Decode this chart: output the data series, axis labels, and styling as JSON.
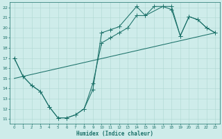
{
  "background_color": "#ceecea",
  "line_color": "#1a7068",
  "grid_color": "#aed8d2",
  "xlabel": "Humidex (Indice chaleur)",
  "xlim": [
    -0.5,
    23.5
  ],
  "ylim": [
    10.5,
    22.5
  ],
  "xticks": [
    0,
    1,
    2,
    3,
    4,
    5,
    6,
    7,
    8,
    9,
    10,
    11,
    12,
    13,
    14,
    15,
    16,
    17,
    18,
    19,
    20,
    21,
    22,
    23
  ],
  "yticks": [
    11,
    12,
    13,
    14,
    15,
    16,
    17,
    18,
    19,
    20,
    21,
    22
  ],
  "line1_x": [
    0,
    1,
    2,
    3,
    4,
    5,
    6,
    7,
    8,
    9,
    10,
    11,
    12,
    14,
    15,
    17,
    18,
    19,
    20,
    21,
    22,
    23
  ],
  "line1_y": [
    17.0,
    15.2,
    14.3,
    13.7,
    12.2,
    11.1,
    11.1,
    11.4,
    12.0,
    13.9,
    19.5,
    19.8,
    20.1,
    22.1,
    21.2,
    22.1,
    21.8,
    19.2,
    21.1,
    20.8,
    20.0,
    19.5
  ],
  "line2_x": [
    0,
    1,
    2,
    3,
    4,
    5,
    6,
    7,
    8,
    9,
    10,
    11,
    12,
    13,
    14,
    15,
    16,
    17,
    18,
    19,
    20,
    21,
    22,
    23
  ],
  "line2_y": [
    17.0,
    15.2,
    14.3,
    13.7,
    12.2,
    11.1,
    11.1,
    11.4,
    12.0,
    14.5,
    18.5,
    19.0,
    19.5,
    20.0,
    21.2,
    21.2,
    22.1,
    22.1,
    22.1,
    19.2,
    21.1,
    20.8,
    20.0,
    19.5
  ],
  "line3_x": [
    0,
    23
  ],
  "line3_y": [
    15.0,
    19.5
  ]
}
